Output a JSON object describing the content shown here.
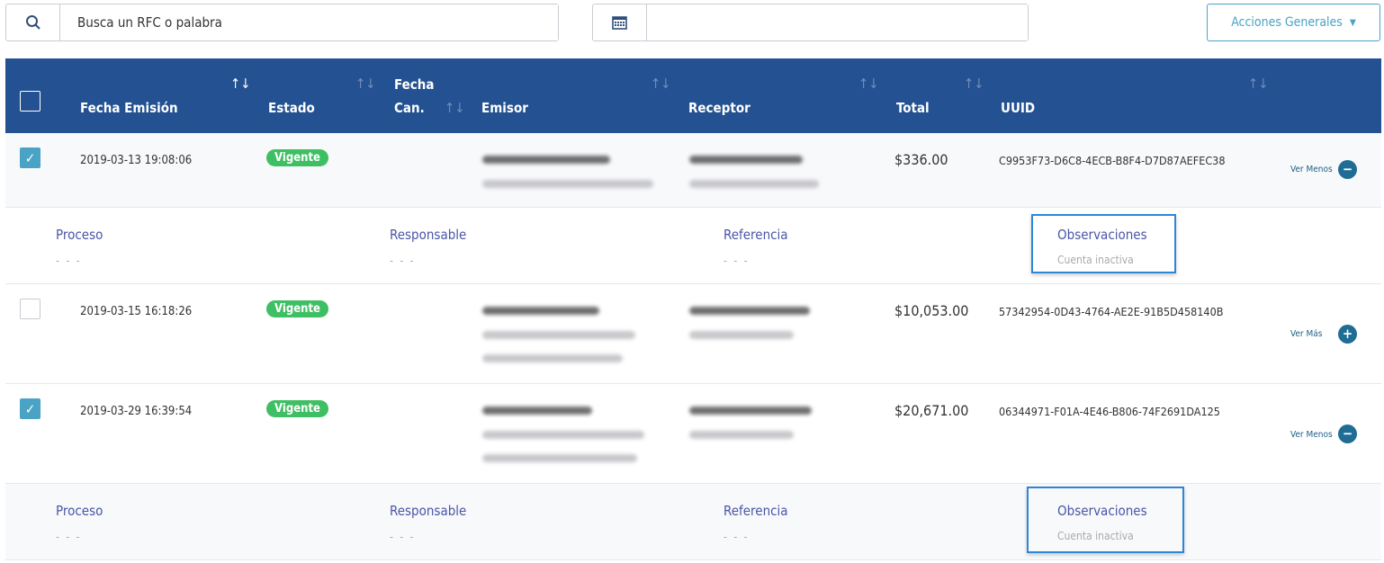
{
  "search": {
    "placeholder": "Busca un RFC o palabra",
    "icon": "search-icon"
  },
  "date_filter": {
    "value": "",
    "icon": "calendar-icon"
  },
  "actions_button": {
    "label": "Acciones Generales",
    "icon": "chevron-down-icon"
  },
  "colors": {
    "header": "#235191",
    "badge": "#3fbf63",
    "checkbox": "#4aa3c4",
    "highlight": "#2e86d6"
  },
  "table": {
    "columns": [
      "Fecha Emisión",
      "Estado",
      "Fecha",
      "Can.",
      "Emisor",
      "Receptor",
      "Total",
      "UUID"
    ],
    "rows": [
      {
        "checked": true,
        "fecha": "2019-03-13 19:08:06",
        "estado": "Vigente",
        "total": "$336.00",
        "uuid": "C9953F73-D6C8-4ECB-B8F4-D7D87AEFEC38",
        "toggle": "Ver Menos",
        "expanded": true
      },
      {
        "checked": false,
        "fecha": "2019-03-15 16:18:26",
        "estado": "Vigente",
        "total": "$10,053.00",
        "uuid": "57342954-0D43-4764-AE2E-91B5D458140B",
        "toggle": "Ver Más",
        "expanded": false
      },
      {
        "checked": true,
        "fecha": "2019-03-29 16:39:54",
        "estado": "Vigente",
        "total": "$20,671.00",
        "uuid": "06344971-F01A-4E46-B806-74F2691DA125",
        "toggle": "Ver Menos",
        "expanded": true
      }
    ],
    "details": [
      {
        "proceso_label": "Proceso",
        "proceso": "- - -",
        "responsable_label": "Responsable",
        "responsable": "- - -",
        "referencia_label": "Referencia",
        "referencia": "- - -",
        "observaciones_label": "Observaciones",
        "observaciones": "Cuenta inactiva"
      },
      {
        "proceso_label": "Proceso",
        "proceso": "- - -",
        "responsable_label": "Responsable",
        "responsable": "- - -",
        "referencia_label": "Referencia",
        "referencia": "- - -",
        "observaciones_label": "Observaciones",
        "observaciones": "Cuenta inactiva"
      }
    ]
  }
}
